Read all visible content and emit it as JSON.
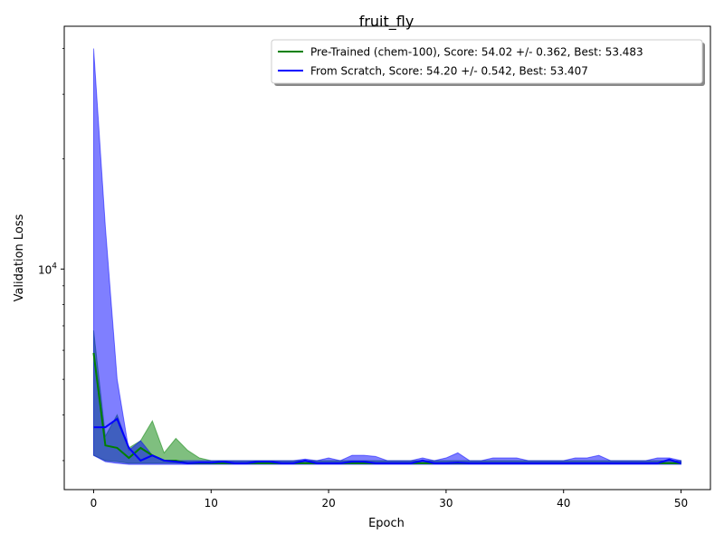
{
  "chart_data": {
    "type": "line",
    "title": "fruit_fly",
    "xlabel": "Epoch",
    "ylabel": "Validation Loss",
    "xlim": [
      -2.5,
      52.5
    ],
    "ylim": [
      2500,
      46000
    ],
    "yscale": "log",
    "grid": false,
    "legend_position": "top-right",
    "x_ticks": [
      0,
      10,
      20,
      30,
      40,
      50
    ],
    "y_ticks": [
      {
        "value": 10000,
        "label_base": "10",
        "label_exp": "4"
      }
    ],
    "y_minor_ticks": [
      3000,
      4000,
      5000,
      6000,
      7000,
      8000,
      9000,
      20000,
      30000,
      40000
    ],
    "x": [
      0,
      1,
      2,
      3,
      4,
      5,
      6,
      7,
      8,
      9,
      10,
      11,
      12,
      13,
      14,
      15,
      16,
      17,
      18,
      19,
      20,
      21,
      22,
      23,
      24,
      25,
      26,
      27,
      28,
      29,
      30,
      31,
      32,
      33,
      34,
      35,
      36,
      37,
      38,
      39,
      40,
      41,
      42,
      43,
      44,
      45,
      46,
      47,
      48,
      49,
      50
    ],
    "series": [
      {
        "name": "Pre-Trained (chem-100), Score: 54.02 +/- 0.362,  Best: 53.483",
        "color": "#008000",
        "values": [
          5900,
          3300,
          3250,
          3050,
          3250,
          3100,
          3000,
          3000,
          2950,
          2950,
          2950,
          2950,
          2950,
          2950,
          2950,
          2950,
          2950,
          2950,
          2950,
          2950,
          2950,
          2950,
          2950,
          2950,
          2950,
          2950,
          2950,
          2950,
          2950,
          2950,
          2950,
          2950,
          2950,
          2950,
          2950,
          2950,
          2950,
          2950,
          2950,
          2950,
          2950,
          2950,
          2950,
          2950,
          2950,
          2950,
          2950,
          2950,
          2950,
          2950,
          2950
        ],
        "upper": [
          6800,
          3500,
          4000,
          3250,
          3400,
          3850,
          3150,
          3450,
          3200,
          3050,
          3000,
          3000,
          3000,
          3000,
          3000,
          3000,
          3000,
          3000,
          3000,
          3000,
          3000,
          3000,
          3000,
          3000,
          3000,
          3000,
          3000,
          3000,
          3000,
          3000,
          3000,
          3000,
          3000,
          3000,
          3000,
          3000,
          3000,
          3000,
          3000,
          3000,
          3000,
          3000,
          3000,
          3000,
          3000,
          3000,
          3000,
          3000,
          3000,
          3000,
          3000
        ],
        "lower": [
          3100,
          3000,
          2980,
          2950,
          2950,
          2950,
          2950,
          2950,
          2950,
          2950,
          2950,
          2950,
          2950,
          2950,
          2950,
          2950,
          2950,
          2950,
          2950,
          2950,
          2950,
          2950,
          2950,
          2950,
          2950,
          2950,
          2950,
          2950,
          2950,
          2950,
          2950,
          2950,
          2950,
          2950,
          2950,
          2950,
          2950,
          2950,
          2950,
          2950,
          2950,
          2950,
          2950,
          2950,
          2950,
          2950,
          2950,
          2950,
          2950,
          2950,
          2950
        ]
      },
      {
        "name": "From Scratch, Score: 54.20 +/- 0.542,  Best: 53.407",
        "color": "#0000ff",
        "values": [
          3700,
          3700,
          3900,
          3250,
          3000,
          3100,
          3000,
          2980,
          2950,
          2960,
          2960,
          2980,
          2950,
          2950,
          2980,
          2980,
          2950,
          2950,
          3000,
          2950,
          2950,
          2950,
          2980,
          2980,
          2950,
          2950,
          2950,
          2950,
          3000,
          2950,
          2950,
          2960,
          2950,
          2950,
          2950,
          2950,
          2950,
          2950,
          2950,
          2950,
          2950,
          2950,
          2950,
          2950,
          2950,
          2950,
          2950,
          2950,
          2950,
          3020,
          2950
        ],
        "upper": [
          40000,
          13000,
          5000,
          3200,
          3400,
          3100,
          3000,
          3000,
          3000,
          3000,
          3000,
          3000,
          3000,
          3000,
          3000,
          3000,
          3000,
          3000,
          3030,
          3000,
          3050,
          3000,
          3100,
          3100,
          3080,
          3000,
          3000,
          3000,
          3050,
          3000,
          3050,
          3150,
          3000,
          3000,
          3050,
          3050,
          3050,
          3000,
          3000,
          3000,
          3000,
          3050,
          3050,
          3100,
          3000,
          3000,
          3000,
          3000,
          3050,
          3050,
          3000
        ],
        "lower": [
          3100,
          2980,
          2950,
          2930,
          2930,
          2930,
          2930,
          2930,
          2930,
          2930,
          2930,
          2930,
          2930,
          2930,
          2930,
          2930,
          2930,
          2930,
          2930,
          2930,
          2930,
          2930,
          2930,
          2930,
          2930,
          2930,
          2930,
          2930,
          2930,
          2930,
          2930,
          2930,
          2930,
          2930,
          2930,
          2930,
          2930,
          2930,
          2930,
          2930,
          2930,
          2930,
          2930,
          2930,
          2930,
          2930,
          2930,
          2930,
          2930,
          2930,
          2930
        ]
      }
    ]
  }
}
